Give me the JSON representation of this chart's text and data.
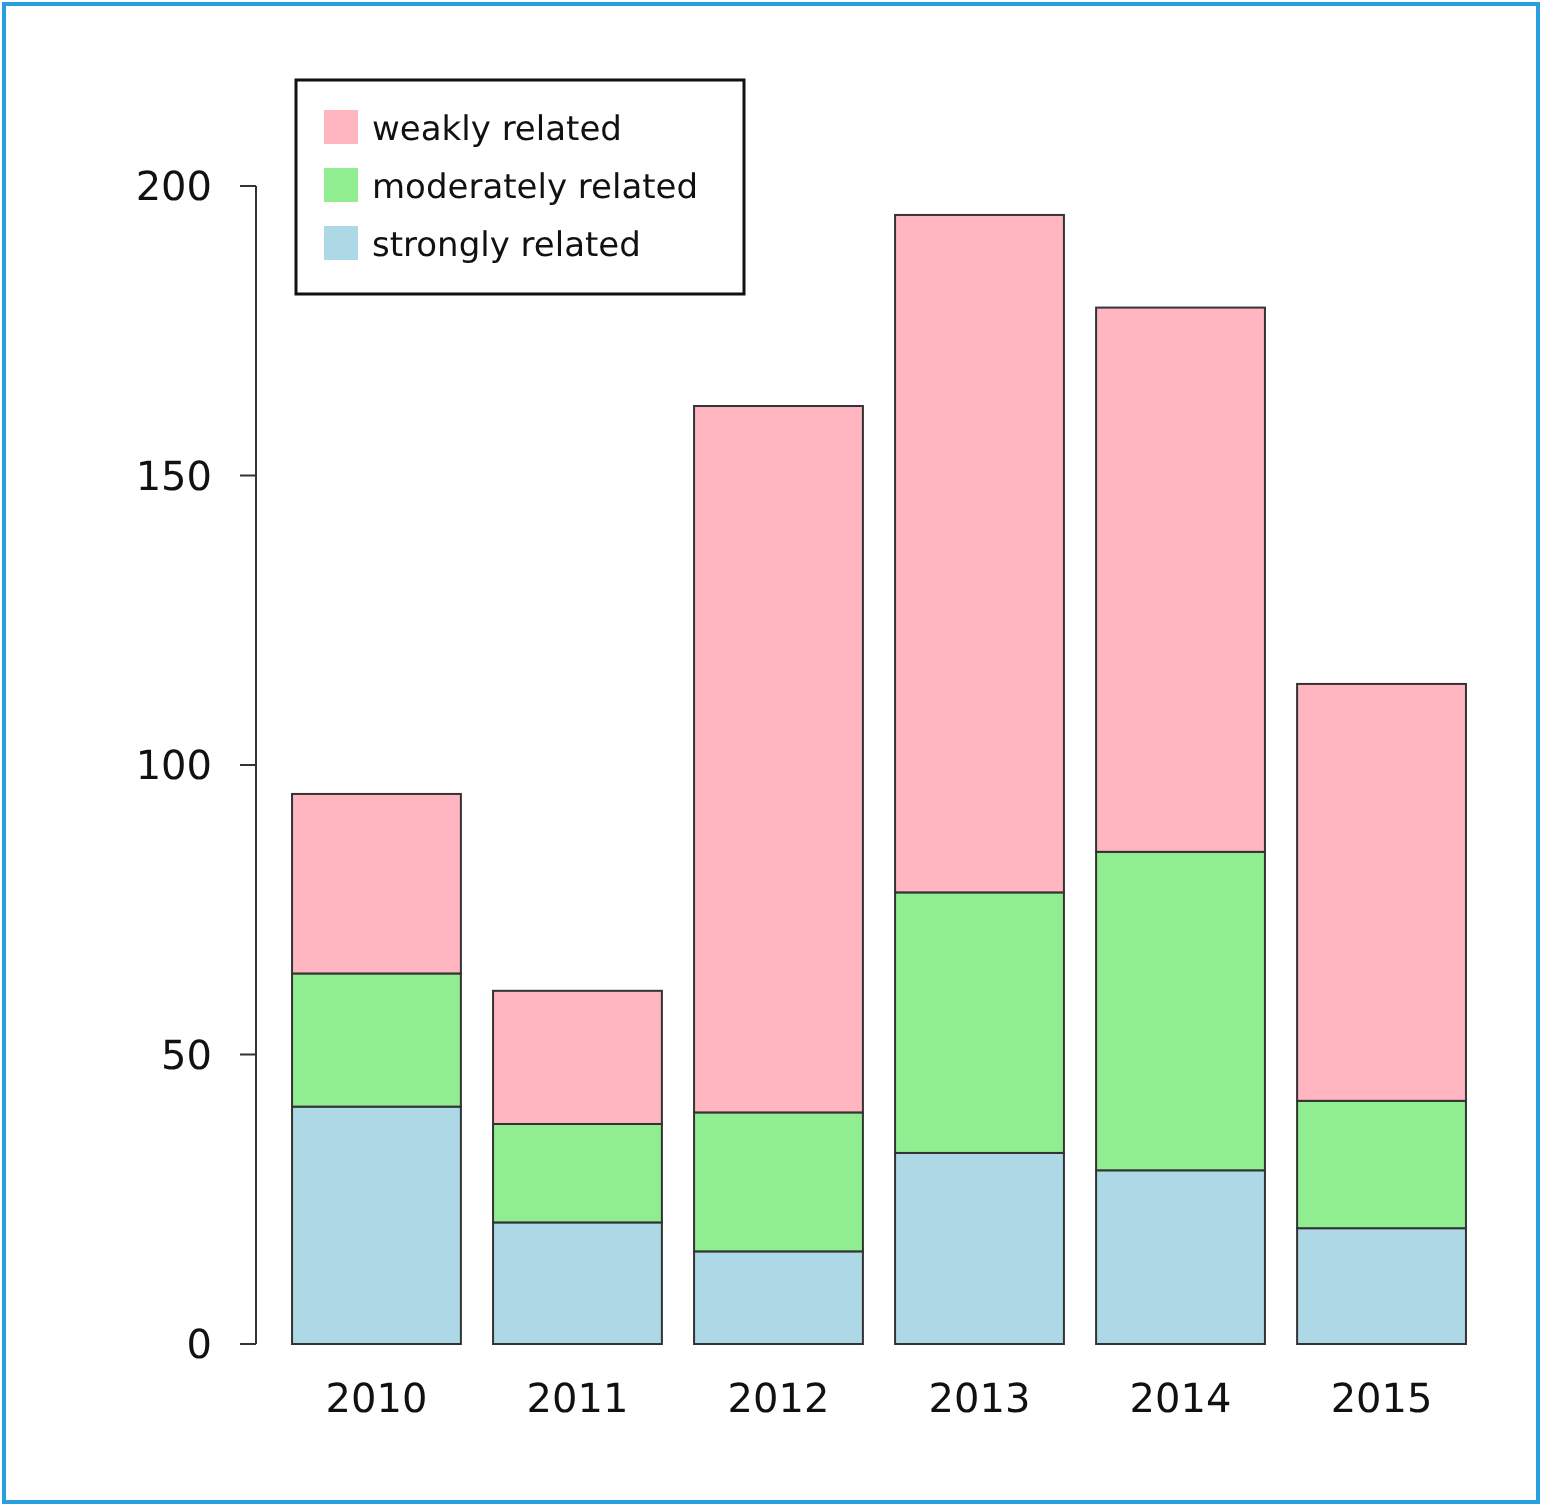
{
  "chart_data": {
    "type": "bar",
    "stacked": true,
    "categories": [
      "2010",
      "2011",
      "2012",
      "2013",
      "2014",
      "2015"
    ],
    "series": [
      {
        "name": "strongly related",
        "color": "#add8e6",
        "values": [
          41,
          21,
          16,
          33,
          30,
          20
        ]
      },
      {
        "name": "moderately related",
        "color": "#90ee90",
        "values": [
          23,
          17,
          24,
          45,
          55,
          22
        ]
      },
      {
        "name": "weakly related",
        "color": "#ffb6c1",
        "values": [
          31,
          23,
          122,
          117,
          94,
          72
        ]
      }
    ],
    "ylim": [
      0,
      200
    ],
    "yticks": [
      0,
      50,
      100,
      150,
      200
    ],
    "grid": false,
    "legend": "top left"
  }
}
